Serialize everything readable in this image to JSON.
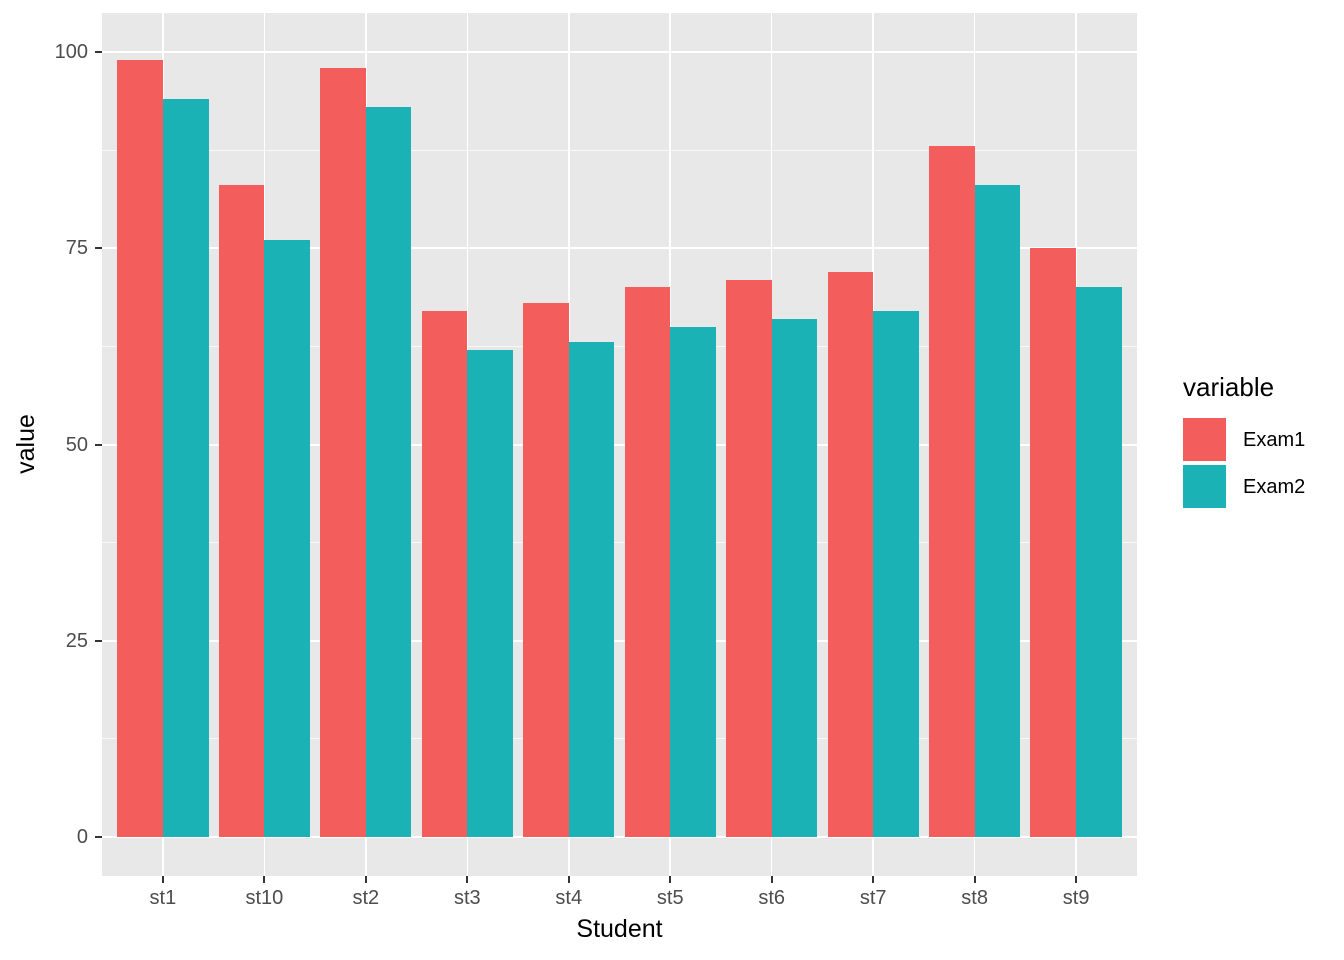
{
  "chart_data": {
    "type": "bar",
    "bar_mode": "grouped",
    "title": "",
    "xlabel": "Student",
    "ylabel": "value",
    "categories": [
      "st1",
      "st10",
      "st2",
      "st3",
      "st4",
      "st5",
      "st6",
      "st7",
      "st8",
      "st9"
    ],
    "series": [
      {
        "name": "Exam1",
        "color": "#F35E5C",
        "values": [
          99,
          83,
          98,
          67,
          68,
          70,
          71,
          72,
          88,
          75
        ]
      },
      {
        "name": "Exam2",
        "color": "#1AB2B5",
        "values": [
          94,
          76,
          93,
          62,
          63,
          65,
          66,
          67,
          83,
          70
        ]
      }
    ],
    "ylim": [
      0,
      100
    ],
    "yticks": [
      0,
      25,
      50,
      75,
      100
    ],
    "ytick_labels": [
      "0",
      "25",
      "50",
      "75",
      "100"
    ],
    "y_minor_ticks": [
      12.5,
      37.5,
      62.5,
      87.5
    ],
    "legend": {
      "title": "variable",
      "position": "right",
      "items": [
        "Exam1",
        "Exam2"
      ]
    },
    "grid": "major-and-minor-white-on-grey",
    "colors": {
      "panel_bg": "#E8E8E8",
      "grid_major": "#FFFFFF",
      "grid_minor": "#FFFFFF",
      "tick_mark": "#333333",
      "tick_label": "#4D4D4D",
      "axis_title": "#000000",
      "legend_text": "#000000",
      "figure_bg": "#FFFFFF"
    }
  }
}
